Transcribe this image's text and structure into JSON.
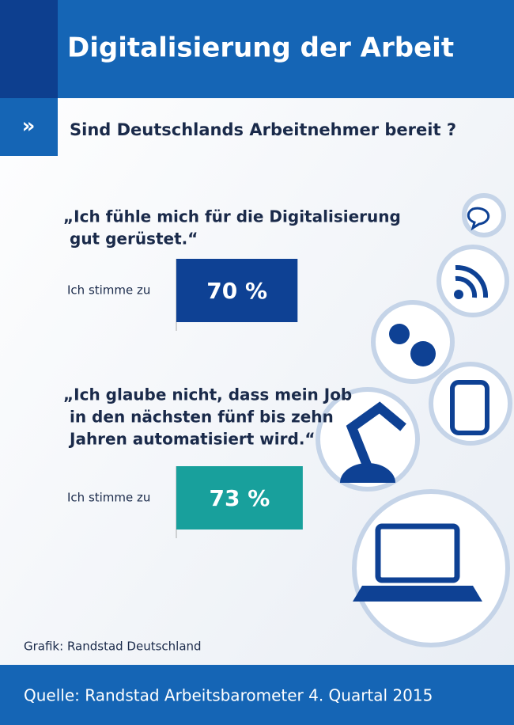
{
  "header": {
    "title": "Digitalisierung der Arbeit",
    "marker": "»",
    "subtitle": "Sind Deutschlands Arbeitnehmer bereit ?"
  },
  "chart_data": [
    {
      "type": "bar",
      "orientation": "horizontal",
      "title": [
        "„Ich fühle mich für die Digitalisierung",
        "gut gerüstet.“"
      ],
      "categories": [
        "Ich stimme zu"
      ],
      "values": [
        70
      ],
      "value_labels": [
        "70 %"
      ],
      "color": "#0e4194",
      "xlim": [
        0,
        100
      ]
    },
    {
      "type": "bar",
      "orientation": "horizontal",
      "title": [
        "„Ich glaube nicht, dass mein Job",
        "in den nächsten fünf bis zehn",
        "Jahren automatisiert wird.“"
      ],
      "categories": [
        "Ich stimme zu"
      ],
      "values": [
        73
      ],
      "value_labels": [
        "73 %"
      ],
      "color": "#18a09c",
      "xlim": [
        0,
        100
      ]
    }
  ],
  "credit": "Grafik: Randstad Deutschland",
  "source": "Quelle: Randstad Arbeitsbarometer 4. Quartal 2015"
}
